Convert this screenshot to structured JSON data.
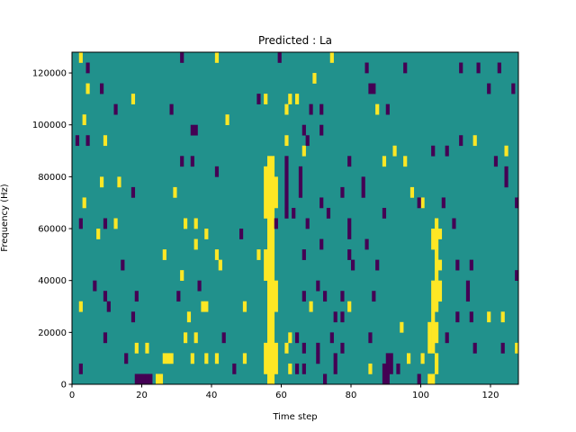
{
  "chart_data": {
    "type": "heatmap",
    "title": "Predicted : La",
    "xlabel": "Time step",
    "ylabel": "Frequency (Hz)",
    "xlim": [
      0,
      128
    ],
    "ylim": [
      0,
      128000
    ],
    "n_steps": 128,
    "n_bins": 32,
    "bin_hz": 4000,
    "xticks": [
      "0",
      "20",
      "40",
      "60",
      "80",
      "100",
      "120"
    ],
    "xtick_values": [
      0,
      20,
      40,
      60,
      80,
      100,
      120
    ],
    "yticks": [
      "0",
      "20000",
      "40000",
      "60000",
      "80000",
      "100000",
      "120000"
    ],
    "ytick_values": [
      0,
      20000,
      40000,
      60000,
      80000,
      100000,
      120000
    ],
    "colors": {
      "low": "#440154",
      "mid": "#21918c",
      "high": "#fde725"
    },
    "value_encoding": "background is mid; runs are [time_step, bin_start, bin_end]",
    "high_runs": [
      [
        56,
        0,
        21
      ],
      [
        57,
        0,
        21
      ],
      [
        55,
        1,
        3
      ],
      [
        55,
        10,
        12
      ],
      [
        55,
        16,
        20
      ],
      [
        58,
        1,
        3
      ],
      [
        58,
        17,
        19
      ],
      [
        58,
        7,
        9
      ],
      [
        2,
        31,
        31
      ],
      [
        41,
        31,
        31
      ],
      [
        74,
        31,
        31
      ],
      [
        4,
        28,
        28
      ],
      [
        17,
        27,
        27
      ],
      [
        55,
        27,
        27
      ],
      [
        62,
        27,
        27
      ],
      [
        64,
        27,
        27
      ],
      [
        69,
        29,
        29
      ],
      [
        61,
        26,
        26
      ],
      [
        87,
        26,
        26
      ],
      [
        3,
        25,
        25
      ],
      [
        44,
        25,
        25
      ],
      [
        9,
        23,
        23
      ],
      [
        61,
        23,
        23
      ],
      [
        115,
        23,
        23
      ],
      [
        124,
        22,
        22
      ],
      [
        66,
        22,
        22
      ],
      [
        89,
        21,
        21
      ],
      [
        95,
        21,
        21
      ],
      [
        92,
        22,
        22
      ],
      [
        8,
        19,
        19
      ],
      [
        13,
        19,
        19
      ],
      [
        29,
        18,
        18
      ],
      [
        97,
        18,
        18
      ],
      [
        100,
        17,
        17
      ],
      [
        3,
        17,
        17
      ],
      [
        12,
        15,
        15
      ],
      [
        32,
        15,
        15
      ],
      [
        35,
        15,
        15
      ],
      [
        7,
        14,
        14
      ],
      [
        38,
        14,
        14
      ],
      [
        35,
        13,
        13
      ],
      [
        104,
        13,
        15
      ],
      [
        103,
        13,
        14
      ],
      [
        105,
        14,
        14
      ],
      [
        26,
        12,
        12
      ],
      [
        41,
        12,
        12
      ],
      [
        42,
        11,
        11
      ],
      [
        53,
        12,
        12
      ],
      [
        31,
        10,
        10
      ],
      [
        104,
        10,
        12
      ],
      [
        105,
        11,
        11
      ],
      [
        38,
        7,
        7
      ],
      [
        37,
        7,
        7
      ],
      [
        49,
        7,
        7
      ],
      [
        68,
        7,
        7
      ],
      [
        79,
        7,
        7
      ],
      [
        2,
        7,
        7
      ],
      [
        33,
        6,
        6
      ],
      [
        123,
        6,
        6
      ],
      [
        119,
        6,
        6
      ],
      [
        94,
        5,
        5
      ],
      [
        102,
        5,
        5
      ],
      [
        103,
        6,
        9
      ],
      [
        104,
        7,
        9
      ],
      [
        105,
        8,
        9
      ],
      [
        32,
        4,
        4
      ],
      [
        35,
        4,
        4
      ],
      [
        62,
        4,
        4
      ],
      [
        18,
        3,
        3
      ],
      [
        21,
        3,
        3
      ],
      [
        61,
        3,
        3
      ],
      [
        127,
        3,
        3
      ],
      [
        102,
        3,
        4
      ],
      [
        103,
        3,
        5
      ],
      [
        104,
        4,
        5
      ],
      [
        26,
        2,
        2
      ],
      [
        27,
        2,
        2
      ],
      [
        28,
        2,
        2
      ],
      [
        34,
        2,
        2
      ],
      [
        38,
        2,
        2
      ],
      [
        41,
        2,
        2
      ],
      [
        49,
        2,
        2
      ],
      [
        96,
        2,
        2
      ],
      [
        100,
        2,
        2
      ],
      [
        104,
        2,
        2
      ],
      [
        62,
        1,
        1
      ],
      [
        85,
        1,
        1
      ],
      [
        24,
        0,
        0
      ],
      [
        25,
        0,
        0
      ],
      [
        102,
        0,
        0
      ],
      [
        103,
        0,
        0
      ],
      [
        104,
        1,
        1
      ]
    ],
    "low_runs": [
      [
        4,
        30,
        30
      ],
      [
        31,
        31,
        31
      ],
      [
        59,
        31,
        31
      ],
      [
        84,
        30,
        30
      ],
      [
        111,
        30,
        30
      ],
      [
        116,
        30,
        30
      ],
      [
        122,
        30,
        30
      ],
      [
        95,
        30,
        30
      ],
      [
        85,
        28,
        28
      ],
      [
        86,
        28,
        28
      ],
      [
        119,
        28,
        28
      ],
      [
        8,
        28,
        28
      ],
      [
        53,
        27,
        27
      ],
      [
        12,
        26,
        26
      ],
      [
        28,
        26,
        26
      ],
      [
        68,
        26,
        26
      ],
      [
        71,
        26,
        26
      ],
      [
        90,
        26,
        26
      ],
      [
        126,
        28,
        28
      ],
      [
        1,
        23,
        23
      ],
      [
        4,
        23,
        23
      ],
      [
        34,
        24,
        24
      ],
      [
        35,
        24,
        24
      ],
      [
        66,
        24,
        24
      ],
      [
        71,
        24,
        24
      ],
      [
        67,
        23,
        23
      ],
      [
        103,
        22,
        22
      ],
      [
        107,
        22,
        22
      ],
      [
        111,
        23,
        23
      ],
      [
        31,
        21,
        21
      ],
      [
        34,
        21,
        21
      ],
      [
        79,
        21,
        21
      ],
      [
        121,
        21,
        21
      ],
      [
        61,
        17,
        21
      ],
      [
        65,
        18,
        20
      ],
      [
        17,
        18,
        18
      ],
      [
        41,
        20,
        20
      ],
      [
        83,
        18,
        19
      ],
      [
        124,
        19,
        20
      ],
      [
        127,
        17,
        17
      ],
      [
        61,
        16,
        16
      ],
      [
        63,
        16,
        16
      ],
      [
        71,
        17,
        17
      ],
      [
        73,
        16,
        16
      ],
      [
        77,
        18,
        18
      ],
      [
        2,
        15,
        15
      ],
      [
        9,
        15,
        15
      ],
      [
        48,
        14,
        14
      ],
      [
        58,
        15,
        15
      ],
      [
        67,
        15,
        15
      ],
      [
        79,
        14,
        15
      ],
      [
        89,
        16,
        16
      ],
      [
        99,
        17,
        17
      ],
      [
        106,
        17,
        17
      ],
      [
        109,
        15,
        15
      ],
      [
        71,
        13,
        13
      ],
      [
        66,
        12,
        12
      ],
      [
        79,
        12,
        12
      ],
      [
        84,
        13,
        13
      ],
      [
        14,
        11,
        11
      ],
      [
        36,
        9,
        9
      ],
      [
        80,
        11,
        11
      ],
      [
        87,
        11,
        11
      ],
      [
        110,
        11,
        11
      ],
      [
        114,
        11,
        11
      ],
      [
        127,
        10,
        10
      ],
      [
        6,
        9,
        9
      ],
      [
        70,
        9,
        9
      ],
      [
        77,
        8,
        8
      ],
      [
        86,
        8,
        8
      ],
      [
        113,
        8,
        9
      ],
      [
        9,
        8,
        8
      ],
      [
        18,
        8,
        8
      ],
      [
        30,
        8,
        8
      ],
      [
        66,
        8,
        8
      ],
      [
        72,
        8,
        8
      ],
      [
        10,
        7,
        7
      ],
      [
        17,
        6,
        6
      ],
      [
        75,
        6,
        6
      ],
      [
        77,
        6,
        6
      ],
      [
        114,
        6,
        6
      ],
      [
        110,
        6,
        6
      ],
      [
        9,
        4,
        4
      ],
      [
        43,
        4,
        4
      ],
      [
        64,
        4,
        4
      ],
      [
        74,
        4,
        4
      ],
      [
        85,
        4,
        4
      ],
      [
        107,
        4,
        4
      ],
      [
        66,
        3,
        3
      ],
      [
        70,
        3,
        3
      ],
      [
        77,
        3,
        3
      ],
      [
        115,
        3,
        3
      ],
      [
        123,
        3,
        3
      ],
      [
        2,
        1,
        1
      ],
      [
        15,
        2,
        2
      ],
      [
        64,
        1,
        1
      ],
      [
        66,
        1,
        1
      ],
      [
        75,
        1,
        2
      ],
      [
        90,
        0,
        2
      ],
      [
        91,
        1,
        2
      ],
      [
        93,
        1,
        1
      ],
      [
        46,
        1,
        1
      ],
      [
        70,
        2,
        2
      ],
      [
        18,
        0,
        0
      ],
      [
        19,
        0,
        0
      ],
      [
        20,
        0,
        0
      ],
      [
        21,
        0,
        0
      ],
      [
        22,
        0,
        0
      ],
      [
        72,
        0,
        0
      ],
      [
        99,
        0,
        0
      ],
      [
        89,
        0,
        1
      ]
    ]
  }
}
